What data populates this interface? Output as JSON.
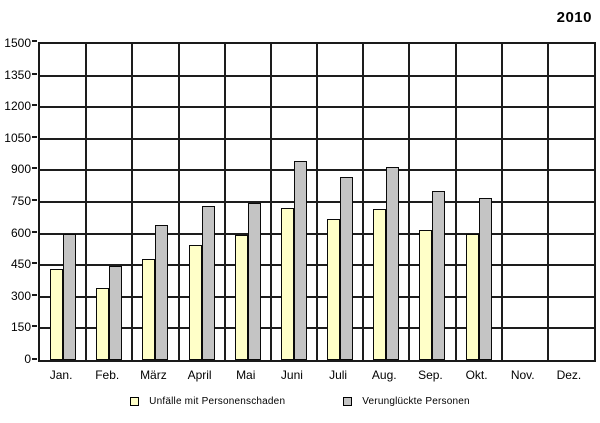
{
  "year_label": "2010",
  "chart_data": {
    "type": "bar",
    "title": "2010",
    "categories": [
      "Jan.",
      "Feb.",
      "März",
      "April",
      "Mai",
      "Juni",
      "Juli",
      "Aug.",
      "Sep.",
      "Okt.",
      "Nov.",
      "Dez."
    ],
    "series": [
      {
        "name": "Unfälle mit Personenschaden",
        "color": "#FFFFC8",
        "values": [
          430,
          340,
          480,
          545,
          595,
          720,
          670,
          715,
          615,
          600,
          null,
          null
        ]
      },
      {
        "name": "Verunglückte Personen",
        "color": "#C4C4C4",
        "values": [
          600,
          445,
          640,
          730,
          745,
          945,
          870,
          915,
          800,
          770,
          null,
          null
        ]
      }
    ],
    "xlabel": "",
    "ylabel": "",
    "ylim": [
      0,
      1500
    ],
    "yticks": [
      0,
      150,
      300,
      450,
      600,
      750,
      900,
      1050,
      1200,
      1350,
      1500
    ],
    "grid": {
      "horizontal": true,
      "vertical_month_boundaries": true
    },
    "legend_position": "bottom-center",
    "colors": {
      "axis": "#1a1a1a",
      "grid": "#1d1d1d",
      "background": "#ffffff",
      "text": "#000000"
    }
  }
}
